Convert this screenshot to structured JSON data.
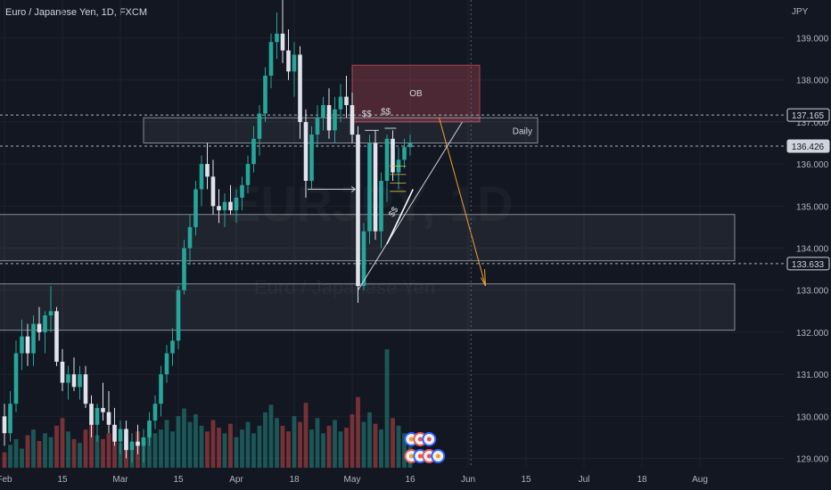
{
  "header": {
    "title": "Euro / Japanese Yen, 1D, FXCM",
    "currency": "JPY"
  },
  "watermark": {
    "symbol": "EURJPY, 1D",
    "name": "Euro / Japanese Yen"
  },
  "chart_data": {
    "type": "candlestick",
    "ylim": [
      128.8,
      139.9
    ],
    "y_ticks": [
      "139.000",
      "138.000",
      "137.000",
      "136.000",
      "135.000",
      "134.000",
      "133.000",
      "132.000",
      "131.000",
      "130.000",
      "129.000"
    ],
    "x_ticks": [
      "Feb",
      "15",
      "Mar",
      "15",
      "Apr",
      "18",
      "May",
      "16",
      "Jun",
      "15",
      "Jul",
      "18",
      "Aug"
    ],
    "x_tick_values": [
      0,
      10,
      20,
      30,
      40,
      50,
      60,
      70,
      80,
      90,
      100,
      110,
      120
    ],
    "price_labels": [
      {
        "value": 137.165,
        "text": "137.165",
        "style": "outline"
      },
      {
        "value": 136.426,
        "text": "136.426",
        "style": "filled"
      },
      {
        "value": 133.633,
        "text": "133.633",
        "style": "outline"
      }
    ],
    "zones": [
      {
        "label": "OB",
        "from_x": 60,
        "to_x": 82,
        "y_low": 137.0,
        "y_high": 138.35,
        "color": "#e05561"
      },
      {
        "label": "Daily",
        "from_x": 24,
        "to_x": 92,
        "y_low": 136.5,
        "y_high": 137.1,
        "color": "#ffffff"
      },
      {
        "label": "",
        "from_x": -2,
        "to_x": 126,
        "y_low": 133.7,
        "y_high": 134.8,
        "color": "#ffffff"
      },
      {
        "label": "",
        "from_x": -2,
        "to_x": 126,
        "y_low": 132.05,
        "y_high": 133.15,
        "color": "#ffffff"
      }
    ],
    "annotations": [
      {
        "text": "$$",
        "x": 62.5,
        "y": 137.0
      },
      {
        "text": "$$",
        "x": 65.8,
        "y": 137.05
      },
      {
        "text": "$$",
        "x": 67.5,
        "y": 134.7
      }
    ],
    "candles": [
      [
        0,
        130.0,
        130.3,
        129.3,
        129.6
      ],
      [
        1,
        129.6,
        130.6,
        129.4,
        130.3
      ],
      [
        2,
        130.3,
        131.8,
        130.1,
        131.5
      ],
      [
        3,
        131.5,
        132.3,
        131.1,
        131.9
      ],
      [
        4,
        131.9,
        132.2,
        131.2,
        131.5
      ],
      [
        5,
        131.5,
        132.4,
        131.2,
        132.2
      ],
      [
        6,
        132.2,
        132.6,
        131.8,
        132.0
      ],
      [
        7,
        132.0,
        132.5,
        131.5,
        132.4
      ],
      [
        8,
        132.4,
        133.1,
        132.0,
        132.5
      ],
      [
        9,
        132.5,
        132.6,
        131.2,
        131.3
      ],
      [
        10,
        131.3,
        131.6,
        130.6,
        130.8
      ],
      [
        11,
        130.8,
        131.2,
        130.4,
        131.0
      ],
      [
        12,
        131.0,
        131.4,
        130.6,
        130.7
      ],
      [
        13,
        130.7,
        131.2,
        130.4,
        131.0
      ],
      [
        14,
        131.0,
        131.2,
        130.2,
        130.3
      ],
      [
        15,
        130.3,
        130.5,
        129.5,
        129.8
      ],
      [
        16,
        129.8,
        130.3,
        129.4,
        130.2
      ],
      [
        17,
        130.2,
        130.8,
        129.9,
        130.1
      ],
      [
        18,
        130.1,
        130.6,
        129.6,
        129.8
      ],
      [
        19,
        129.8,
        130.2,
        129.3,
        129.4
      ],
      [
        20,
        129.4,
        129.9,
        129.1,
        129.7
      ],
      [
        21,
        129.7,
        129.9,
        129.0,
        129.2
      ],
      [
        22,
        129.2,
        129.6,
        128.9,
        129.4
      ],
      [
        23,
        129.4,
        129.8,
        129.1,
        129.3
      ],
      [
        24,
        129.3,
        129.7,
        128.9,
        129.5
      ],
      [
        25,
        129.5,
        130.1,
        129.3,
        129.9
      ],
      [
        26,
        129.9,
        130.5,
        129.7,
        130.3
      ],
      [
        27,
        130.3,
        131.2,
        130.0,
        131.0
      ],
      [
        28,
        131.0,
        131.7,
        130.8,
        131.5
      ],
      [
        29,
        131.5,
        132.1,
        131.2,
        131.8
      ],
      [
        30,
        131.8,
        133.1,
        131.6,
        133.0
      ],
      [
        31,
        133.0,
        134.2,
        132.9,
        134.0
      ],
      [
        32,
        134.0,
        134.8,
        133.6,
        134.5
      ],
      [
        33,
        134.5,
        135.6,
        134.3,
        135.4
      ],
      [
        34,
        135.4,
        136.2,
        135.0,
        136.0
      ],
      [
        35,
        136.0,
        136.5,
        135.4,
        135.7
      ],
      [
        36,
        135.7,
        136.1,
        134.8,
        135.0
      ],
      [
        37,
        135.0,
        135.4,
        134.6,
        134.9
      ],
      [
        38,
        134.9,
        135.3,
        134.5,
        135.1
      ],
      [
        39,
        135.1,
        135.5,
        134.8,
        134.9
      ],
      [
        40,
        134.9,
        135.4,
        134.6,
        135.2
      ],
      [
        41,
        135.2,
        135.7,
        134.9,
        135.5
      ],
      [
        42,
        135.5,
        136.2,
        135.3,
        136.0
      ],
      [
        43,
        136.0,
        136.9,
        135.8,
        136.6
      ],
      [
        44,
        136.6,
        137.4,
        136.2,
        137.2
      ],
      [
        45,
        137.2,
        138.3,
        137.0,
        138.1
      ],
      [
        46,
        138.1,
        139.1,
        137.8,
        138.9
      ],
      [
        47,
        138.9,
        139.6,
        138.5,
        139.1
      ],
      [
        48,
        139.1,
        139.9,
        138.4,
        138.7
      ],
      [
        49,
        138.7,
        139.2,
        138.0,
        138.2
      ],
      [
        50,
        138.2,
        138.9,
        137.6,
        138.6
      ],
      [
        51,
        138.6,
        138.8,
        136.6,
        137.0
      ],
      [
        52,
        137.0,
        137.3,
        135.2,
        135.6
      ],
      [
        53,
        135.6,
        136.9,
        135.4,
        136.7
      ],
      [
        54,
        136.7,
        137.4,
        136.4,
        137.1
      ],
      [
        55,
        137.1,
        137.6,
        136.8,
        137.4
      ],
      [
        56,
        137.4,
        137.8,
        136.6,
        136.8
      ],
      [
        57,
        136.8,
        137.6,
        136.5,
        137.3
      ],
      [
        58,
        137.3,
        137.9,
        137.0,
        137.6
      ],
      [
        59,
        137.6,
        138.1,
        137.1,
        137.4
      ],
      [
        60,
        137.4,
        137.7,
        136.5,
        136.7
      ],
      [
        61,
        136.7,
        136.9,
        132.7,
        133.1
      ],
      [
        62,
        133.1,
        134.6,
        133.0,
        134.4
      ],
      [
        63,
        134.4,
        136.7,
        134.1,
        136.5
      ],
      [
        64,
        136.5,
        136.8,
        134.2,
        134.4
      ],
      [
        65,
        134.4,
        135.8,
        134.0,
        135.6
      ],
      [
        66,
        135.6,
        136.7,
        135.1,
        136.6
      ],
      [
        67,
        136.6,
        136.8,
        135.6,
        135.8
      ],
      [
        68,
        135.8,
        136.4,
        135.4,
        136.1
      ],
      [
        69,
        136.1,
        136.6,
        135.9,
        136.4
      ],
      [
        70,
        136.4,
        136.7,
        136.2,
        136.5
      ]
    ],
    "volumes": [
      0.8,
      1.2,
      1.5,
      1.0,
      1.7,
      2.0,
      1.4,
      1.8,
      1.6,
      2.2,
      2.6,
      1.9,
      1.5,
      1.3,
      2.0,
      2.4,
      1.7,
      1.5,
      1.8,
      2.1,
      1.3,
      1.6,
      1.2,
      1.9,
      1.4,
      2.3,
      1.8,
      2.0,
      2.5,
      1.9,
      2.7,
      3.1,
      2.4,
      2.8,
      2.2,
      1.9,
      2.5,
      2.1,
      1.8,
      2.3,
      1.6,
      2.0,
      2.4,
      1.8,
      2.2,
      2.9,
      3.3,
      2.6,
      2.2,
      1.9,
      2.7,
      2.4,
      3.4,
      2.0,
      2.6,
      1.8,
      2.2,
      2.5,
      1.9,
      2.1,
      2.8,
      3.7,
      2.4,
      2.9,
      2.3,
      2.0,
      6.2,
      2.6,
      2.2,
      1.8,
      1.1
    ]
  }
}
